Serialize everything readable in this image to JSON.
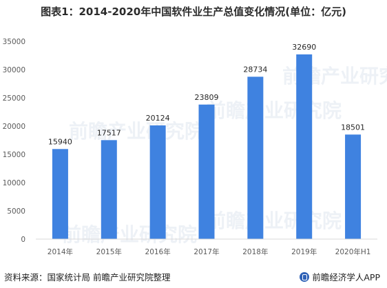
{
  "title": "图表1：2014-2020年中国软件业生产总值变化情况(单位：亿元)",
  "footer": {
    "source": "资料来源：国家统计局  前瞻产业研究院整理",
    "brand": "前瞻经济学人APP"
  },
  "watermark": "前瞻产业研究院",
  "colors": {
    "bar": "#3f82e0",
    "axis": "#d9d9d9"
  },
  "chart_data": {
    "type": "bar",
    "categories": [
      "2014年",
      "2015年",
      "2016年",
      "2017年",
      "2018年",
      "2019年",
      "2020年H1"
    ],
    "values": [
      15940,
      17517,
      20124,
      23809,
      28734,
      32690,
      18501
    ],
    "ylim": [
      0,
      35000
    ],
    "yticks": [
      0,
      5000,
      10000,
      15000,
      20000,
      25000,
      30000,
      35000
    ],
    "grid": false,
    "legend": "none"
  }
}
